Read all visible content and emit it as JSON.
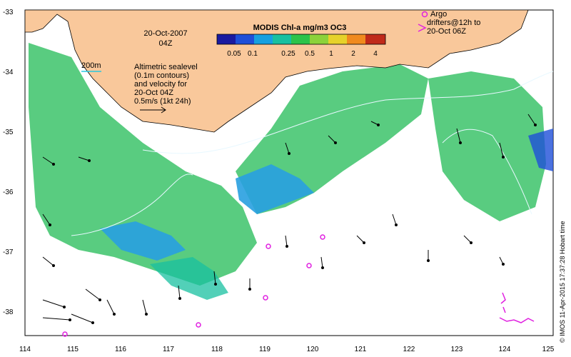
{
  "map": {
    "date_label": "20-Oct-2007",
    "time_label": "04Z",
    "colorbar": {
      "title": "MODIS Chl-a mg/m3 OC3",
      "labels": [
        "0.05",
        "0.1",
        "0.25",
        "0.5",
        "1",
        "2",
        "4"
      ],
      "colors": [
        "#1a1aa0",
        "#1e4fd8",
        "#16a0e0",
        "#18c0a0",
        "#2cc34a",
        "#8cd23a",
        "#e6d22a",
        "#f08a1e",
        "#c02a1a"
      ]
    },
    "isobath_label": "200m",
    "annotation_lines": [
      "Altimetric sealevel",
      "(0.1m contours)",
      "and velocity for",
      "20-Oct 04Z",
      "0.5m/s (1kt 24h)"
    ],
    "argo_legend_lines": [
      "Argo",
      "drifters@12h to",
      "20-Oct 06Z"
    ],
    "x_ticks": [
      "114",
      "115",
      "116",
      "117",
      "118",
      "119",
      "120",
      "121",
      "122",
      "123",
      "124",
      "125"
    ],
    "y_ticks": [
      "-33",
      "-34",
      "-35",
      "-36",
      "-37",
      "-38"
    ],
    "credit": "© IMOS 11-Apr-2015 17:37:28 Hobart time",
    "colors": {
      "land": "#f9c89b",
      "chl_green": "#3cc36a",
      "chl_blue": "#28a0e0",
      "argo": "#e020e0",
      "contour": "#e8f8ff"
    }
  }
}
